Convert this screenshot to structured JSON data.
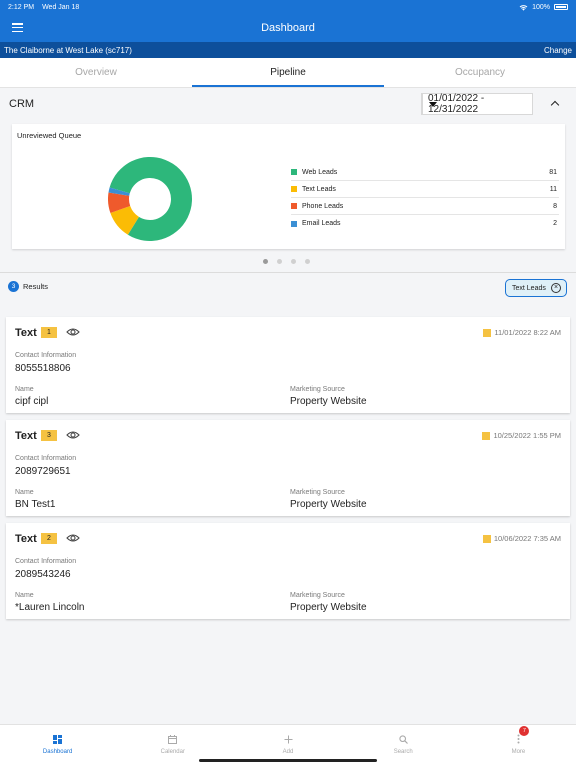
{
  "status_bar": {
    "time": "2:12 PM",
    "date": "Wed Jan 18",
    "battery": "100%"
  },
  "app_bar": {
    "title": "Dashboard"
  },
  "property": {
    "name": "The Claiborne at West Lake (sc717)",
    "change_label": "Change"
  },
  "tabs": [
    {
      "label": "Overview",
      "active": false
    },
    {
      "label": "Pipeline",
      "active": true
    },
    {
      "label": "Occupancy",
      "active": false
    }
  ],
  "crm": {
    "title": "CRM",
    "date_range": "01/01/2022 - 12/31/2022"
  },
  "queue": {
    "title": "Unreviewed Queue",
    "colors": {
      "web": "#2db77b",
      "text": "#fbbc05",
      "phone": "#ef5a2c",
      "email": "#3b8fd4"
    },
    "legend": [
      {
        "label": "Web Leads",
        "count": "81"
      },
      {
        "label": "Text Leads",
        "count": "11"
      },
      {
        "label": "Phone Leads",
        "count": "8"
      },
      {
        "label": "Email Leads",
        "count": "2"
      }
    ]
  },
  "results": {
    "count": "3",
    "label": "Results",
    "filter_chip": "Text Leads"
  },
  "leads": [
    {
      "type": "Text",
      "badge": "1",
      "date": "11/01/2022 8:22 AM",
      "contact_label": "Contact Information",
      "contact": "8055518806",
      "name_label": "Name",
      "name": "cipf cipl",
      "source_label": "Marketing Source",
      "source": "Property Website"
    },
    {
      "type": "Text",
      "badge": "3",
      "date": "10/25/2022 1:55 PM",
      "contact_label": "Contact Information",
      "contact": "2089729651",
      "name_label": "Name",
      "name": "BN Test1",
      "source_label": "Marketing Source",
      "source": "Property Website"
    },
    {
      "type": "Text",
      "badge": "2",
      "date": "10/06/2022 7:35 AM",
      "contact_label": "Contact Information",
      "contact": "2089543246",
      "name_label": "Name",
      "name": "*Lauren Lincoln",
      "source_label": "Marketing Source",
      "source": "Property Website"
    }
  ],
  "bottom_nav": [
    {
      "label": "Dashboard",
      "icon": "dashboard-icon",
      "active": true
    },
    {
      "label": "Calendar",
      "icon": "calendar-icon",
      "active": false
    },
    {
      "label": "Add",
      "icon": "plus-icon",
      "active": false
    },
    {
      "label": "Search",
      "icon": "search-icon",
      "active": false
    },
    {
      "label": "More",
      "icon": "more-icon",
      "active": false,
      "badge": "7"
    }
  ]
}
